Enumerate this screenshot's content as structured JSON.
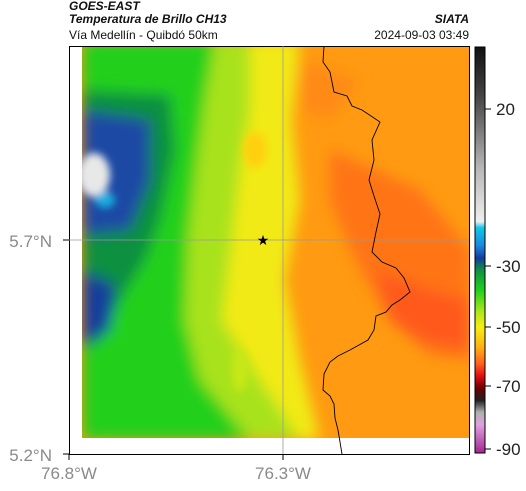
{
  "header": {
    "satellite": "GOES-EAST",
    "product": "Temperatura de Brillo CH13",
    "route": "Vía Medellín - Quibdó 50km",
    "org": "SIATA",
    "datetime": "2024-09-03 03:49"
  },
  "axes": {
    "lat_labels": [
      "5.7°N",
      "5.2°N"
    ],
    "lon_labels": [
      "76.8°W",
      "76.3°W"
    ]
  },
  "colorbar": {
    "ticks": [
      "20",
      "-30",
      "-50",
      "-70",
      "-90"
    ]
  },
  "colors": {
    "warm_orange": "#ff9a10",
    "deep_orange": "#ff7018",
    "yellow": "#f4ee10",
    "green": "#20d21a",
    "deep_blue": "#103a96",
    "white_cloud": "#eeeeee"
  },
  "marker": {
    "icon": "star-icon"
  }
}
